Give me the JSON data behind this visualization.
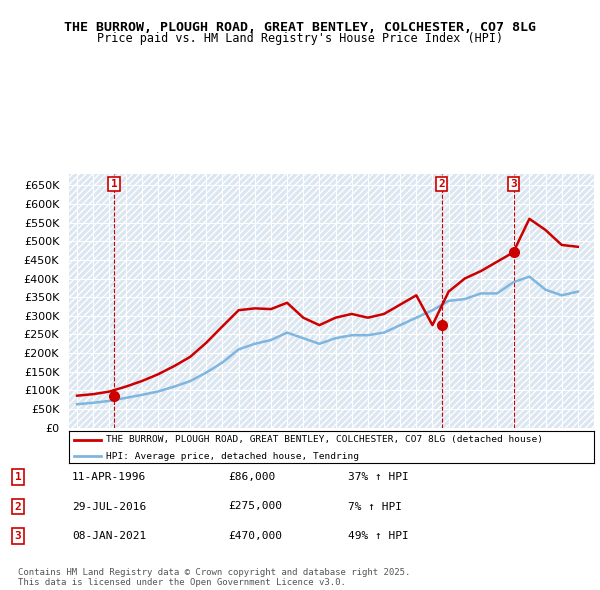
{
  "title1": "THE BURROW, PLOUGH ROAD, GREAT BENTLEY, COLCHESTER, CO7 8LG",
  "title2": "Price paid vs. HM Land Registry's House Price Index (HPI)",
  "bg_color": "#dce6f1",
  "plot_bg_color": "#dce6f1",
  "hatch_color": "#c0d0e8",
  "red_color": "#cc0000",
  "blue_color": "#7eb6e0",
  "sale_marker_color": "#cc0000",
  "vline_color": "#cc0000",
  "ylim_min": 0,
  "ylim_max": 680000,
  "yticks": [
    0,
    50000,
    100000,
    150000,
    200000,
    250000,
    300000,
    350000,
    400000,
    450000,
    500000,
    550000,
    600000,
    650000
  ],
  "xlim_min": 1993.5,
  "xlim_max": 2026.0,
  "sale_dates": [
    1996.28,
    2016.57,
    2021.02
  ],
  "sale_prices": [
    86000,
    275000,
    470000
  ],
  "sale_labels": [
    "1",
    "2",
    "3"
  ],
  "legend_line1": "THE BURROW, PLOUGH ROAD, GREAT BENTLEY, COLCHESTER, CO7 8LG (detached house)",
  "legend_line2": "HPI: Average price, detached house, Tendring",
  "table_data": [
    [
      "1",
      "11-APR-1996",
      "£86,000",
      "37% ↑ HPI"
    ],
    [
      "2",
      "29-JUL-2016",
      "£275,000",
      "7% ↑ HPI"
    ],
    [
      "3",
      "08-JAN-2021",
      "£470,000",
      "49% ↑ HPI"
    ]
  ],
  "footer": "Contains HM Land Registry data © Crown copyright and database right 2025.\nThis data is licensed under the Open Government Licence v3.0.",
  "hpi_years": [
    1994,
    1995,
    1996,
    1997,
    1998,
    1999,
    2000,
    2001,
    2002,
    2003,
    2004,
    2005,
    2006,
    2007,
    2008,
    2009,
    2010,
    2011,
    2012,
    2013,
    2014,
    2015,
    2016,
    2017,
    2018,
    2019,
    2020,
    2021,
    2022,
    2023,
    2024,
    2025
  ],
  "hpi_values": [
    63000,
    67000,
    72000,
    80000,
    88000,
    97000,
    110000,
    125000,
    148000,
    175000,
    210000,
    225000,
    235000,
    255000,
    240000,
    225000,
    240000,
    248000,
    248000,
    255000,
    275000,
    295000,
    315000,
    340000,
    345000,
    360000,
    360000,
    390000,
    405000,
    370000,
    355000,
    365000
  ],
  "prop_years": [
    1994,
    1995,
    1996,
    1997,
    1998,
    1999,
    2000,
    2001,
    2002,
    2003,
    2004,
    2005,
    2006,
    2007,
    2008,
    2009,
    2010,
    2011,
    2012,
    2013,
    2014,
    2015,
    2016,
    2017,
    2018,
    2019,
    2020,
    2021,
    2022,
    2023,
    2024,
    2025
  ],
  "prop_values": [
    86000,
    90000,
    97000,
    110000,
    125000,
    143000,
    165000,
    190000,
    228000,
    272000,
    315000,
    320000,
    318000,
    335000,
    295000,
    275000,
    295000,
    305000,
    295000,
    305000,
    330000,
    355000,
    275000,
    365000,
    400000,
    420000,
    445000,
    470000,
    560000,
    530000,
    490000,
    485000
  ]
}
